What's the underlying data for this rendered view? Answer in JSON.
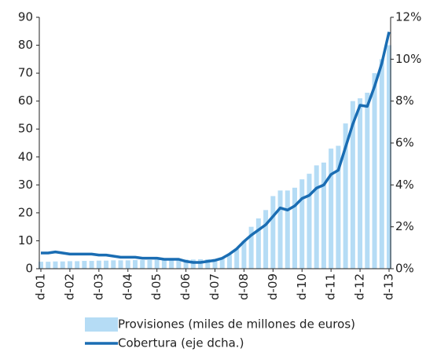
{
  "chart_data": {
    "type": "bar-line",
    "categories": [
      "d-01",
      null,
      null,
      null,
      "d-02",
      null,
      null,
      null,
      "d-03",
      null,
      null,
      null,
      "d-04",
      null,
      null,
      null,
      "d-05",
      null,
      null,
      null,
      "d-06",
      null,
      null,
      null,
      "d-07",
      null,
      null,
      null,
      "d-08",
      null,
      null,
      null,
      "d-09",
      null,
      null,
      null,
      "d-10",
      null,
      null,
      null,
      "d-11",
      null,
      null,
      null,
      "d-12",
      null,
      null,
      null,
      "d-13"
    ],
    "series": [
      {
        "name": "Provisiones (miles de millones de euros)",
        "type": "bar",
        "color": "#b5dcf5",
        "values": [
          2.5,
          2.5,
          2.6,
          2.6,
          2.7,
          2.7,
          2.8,
          2.8,
          2.9,
          2.9,
          3.0,
          3.0,
          3.0,
          3.1,
          3.1,
          3.1,
          3.2,
          3.2,
          3.2,
          3.3,
          3.3,
          3.3,
          3.4,
          3.4,
          3.5,
          4,
          5,
          7,
          10,
          15,
          18,
          21,
          26,
          28,
          28,
          29,
          32,
          34,
          37,
          38,
          43,
          44,
          52,
          60,
          61,
          63,
          70,
          75,
          80
        ]
      },
      {
        "name": "Cobertura (eje dcha.)",
        "type": "line",
        "axis": "y2",
        "color": "#1a6db3",
        "values": [
          0.75,
          0.75,
          0.8,
          0.75,
          0.7,
          0.7,
          0.7,
          0.7,
          0.65,
          0.65,
          0.6,
          0.55,
          0.55,
          0.55,
          0.5,
          0.5,
          0.5,
          0.45,
          0.45,
          0.45,
          0.35,
          0.3,
          0.3,
          0.35,
          0.4,
          0.5,
          0.7,
          0.95,
          1.3,
          1.6,
          1.85,
          2.1,
          2.5,
          2.9,
          2.8,
          3.0,
          3.35,
          3.5,
          3.85,
          4.0,
          4.5,
          4.7,
          5.8,
          6.9,
          7.8,
          7.75,
          8.7,
          9.8,
          11.3
        ]
      }
    ],
    "ylim": [
      0,
      90
    ],
    "yticks": [
      0,
      10,
      20,
      30,
      40,
      50,
      60,
      70,
      80,
      90
    ],
    "y2lim": [
      0,
      12
    ],
    "y2ticks": [
      {
        "value": 0,
        "label": "0%"
      },
      {
        "value": 2,
        "label": "2%"
      },
      {
        "value": 4,
        "label": "4%"
      },
      {
        "value": 6,
        "label": "6%"
      },
      {
        "value": 8,
        "label": "8%"
      },
      {
        "value": 10,
        "label": "10%"
      },
      {
        "value": 12,
        "label": "12%"
      }
    ],
    "grid": false
  }
}
